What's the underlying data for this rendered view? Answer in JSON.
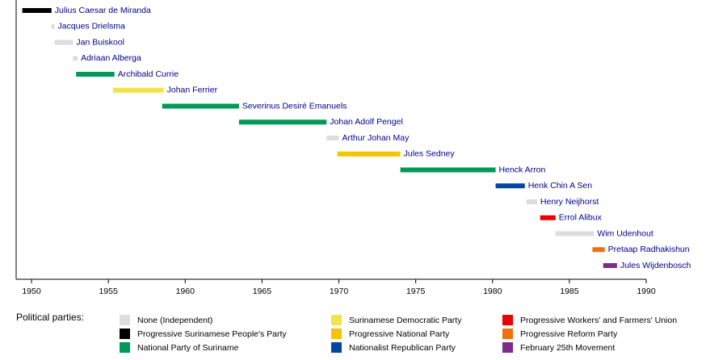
{
  "chart_data": {
    "type": "timeline",
    "xlim": [
      1949,
      1990
    ],
    "xticks": [
      1950,
      1955,
      1960,
      1965,
      1970,
      1975,
      1980,
      1985,
      1990
    ],
    "bars": [
      {
        "label": "Julius Caesar de Miranda",
        "start": 1949.4,
        "end": 1951.3,
        "color": "#000000"
      },
      {
        "label": "Jacques Drielsma",
        "start": 1951.3,
        "end": 1951.5,
        "color": "#dddddd"
      },
      {
        "label": "Jan Buiskool",
        "start": 1951.5,
        "end": 1952.7,
        "color": "#dddddd"
      },
      {
        "label": "Adriaan Alberga",
        "start": 1952.7,
        "end": 1953.0,
        "color": "#dddddd"
      },
      {
        "label": "Archibald Currie",
        "start": 1952.9,
        "end": 1955.4,
        "color": "#00995a"
      },
      {
        "label": "Johan Ferrier",
        "start": 1955.3,
        "end": 1958.6,
        "color": "#f3e34a"
      },
      {
        "label": "Severinus Desiré Emanuels",
        "start": 1958.5,
        "end": 1963.5,
        "color": "#00995a"
      },
      {
        "label": "Johan Adolf Pengel",
        "start": 1963.5,
        "end": 1969.2,
        "color": "#00995a"
      },
      {
        "label": "Arthur Johan May",
        "start": 1969.2,
        "end": 1970.0,
        "color": "#dddddd"
      },
      {
        "label": "Jules Sedney",
        "start": 1969.9,
        "end": 1974.0,
        "color": "#f5c400"
      },
      {
        "label": "Henck Arron",
        "start": 1974.0,
        "end": 1980.2,
        "color": "#00995a"
      },
      {
        "label": "Henk Chin A Sen",
        "start": 1980.2,
        "end": 1982.1,
        "color": "#0047a0"
      },
      {
        "label": "Henry Neijhorst",
        "start": 1982.2,
        "end": 1982.9,
        "color": "#dddddd"
      },
      {
        "label": "Errol Alibux",
        "start": 1983.1,
        "end": 1984.1,
        "color": "#ee0000"
      },
      {
        "label": "Wim Udenhout",
        "start": 1984.1,
        "end": 1986.6,
        "color": "#dddddd"
      },
      {
        "label": "Pretaap Radhakishun",
        "start": 1986.5,
        "end": 1987.3,
        "color": "#f07010"
      },
      {
        "label": "Jules Wijdenbosch",
        "start": 1987.2,
        "end": 1988.1,
        "color": "#7e2c8c"
      }
    ],
    "legend_title": "Political parties:",
    "parties": [
      {
        "name": "None (Independent)",
        "color": "#dddddd"
      },
      {
        "name": "Progressive Surinamese People's Party",
        "color": "#000000"
      },
      {
        "name": "National Party of Suriname",
        "color": "#00995a"
      },
      {
        "name": "Surinamese Democratic Party",
        "color": "#f3e34a"
      },
      {
        "name": "Progressive National Party",
        "color": "#f5c400"
      },
      {
        "name": "Nationalist Republican Party",
        "color": "#0047a0"
      },
      {
        "name": "Progressive Workers' and Farmers' Union",
        "color": "#ee0000"
      },
      {
        "name": "Progressive Reform Party",
        "color": "#f07010"
      },
      {
        "name": "February 25th Movement",
        "color": "#7e2c8c"
      }
    ]
  }
}
